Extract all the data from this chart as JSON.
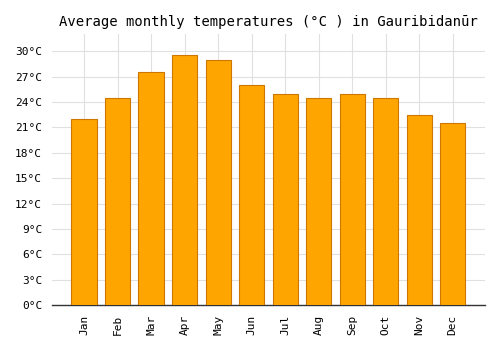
{
  "months": [
    "Jan",
    "Feb",
    "Mar",
    "Apr",
    "May",
    "Jun",
    "Jul",
    "Aug",
    "Sep",
    "Oct",
    "Nov",
    "Dec"
  ],
  "temperatures": [
    22.0,
    24.5,
    27.5,
    29.5,
    29.0,
    26.0,
    25.0,
    24.5,
    25.0,
    24.5,
    22.5,
    21.5
  ],
  "bar_color": "#FFA500",
  "bar_edge_color": "#CC7700",
  "title": "Average monthly temperatures (°C ) in Gauribidanūr",
  "ylim": [
    0,
    32
  ],
  "yticks": [
    0,
    3,
    6,
    9,
    12,
    15,
    18,
    21,
    24,
    27,
    30
  ],
  "ytick_labels": [
    "0°C",
    "3°C",
    "6°C",
    "9°C",
    "12°C",
    "15°C",
    "18°C",
    "21°C",
    "24°C",
    "27°C",
    "30°C"
  ],
  "background_color": "#ffffff",
  "grid_color": "#e0e0e0",
  "title_fontsize": 10,
  "tick_fontsize": 8,
  "font_family": "monospace"
}
